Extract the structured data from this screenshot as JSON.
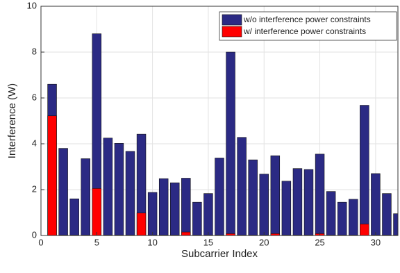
{
  "chart_data": {
    "type": "bar",
    "xlabel": "Subcarrier Index",
    "ylabel": "Interference (W)",
    "x": [
      1,
      2,
      3,
      4,
      5,
      6,
      7,
      8,
      9,
      10,
      11,
      12,
      13,
      14,
      15,
      16,
      17,
      18,
      19,
      20,
      21,
      22,
      23,
      24,
      25,
      26,
      27,
      28,
      29,
      30,
      31,
      32
    ],
    "series": [
      {
        "name": "w/o interference power constraints",
        "color": "#2b2a84",
        "values": [
          6.6,
          3.8,
          1.6,
          3.35,
          8.8,
          4.25,
          4.02,
          3.67,
          4.42,
          1.88,
          2.48,
          2.3,
          2.5,
          1.45,
          1.83,
          3.38,
          8.0,
          4.28,
          3.3,
          2.68,
          3.48,
          2.37,
          2.92,
          2.88,
          3.55,
          1.92,
          1.45,
          1.58,
          5.68,
          2.7,
          1.83,
          0.95
        ]
      },
      {
        "name": "w/ interference power constraints",
        "color": "#ff0000",
        "values": [
          5.22,
          0.02,
          0.02,
          0.02,
          2.05,
          0.02,
          0.02,
          0.02,
          0.98,
          0.02,
          0.02,
          0.02,
          0.15,
          0.02,
          0.02,
          0.02,
          0.08,
          0.02,
          0.02,
          0.02,
          0.08,
          0.02,
          0.02,
          0.02,
          0.08,
          0.02,
          0.02,
          0.02,
          0.5,
          0.02,
          0.02,
          0.02
        ]
      }
    ],
    "xlim": [
      0,
      32
    ],
    "xticks": [
      0,
      5,
      10,
      15,
      20,
      25,
      30
    ],
    "ylim": [
      0,
      10
    ],
    "yticks": [
      0,
      2,
      4,
      6,
      8,
      10
    ],
    "grid": true,
    "legend": "upper right"
  }
}
